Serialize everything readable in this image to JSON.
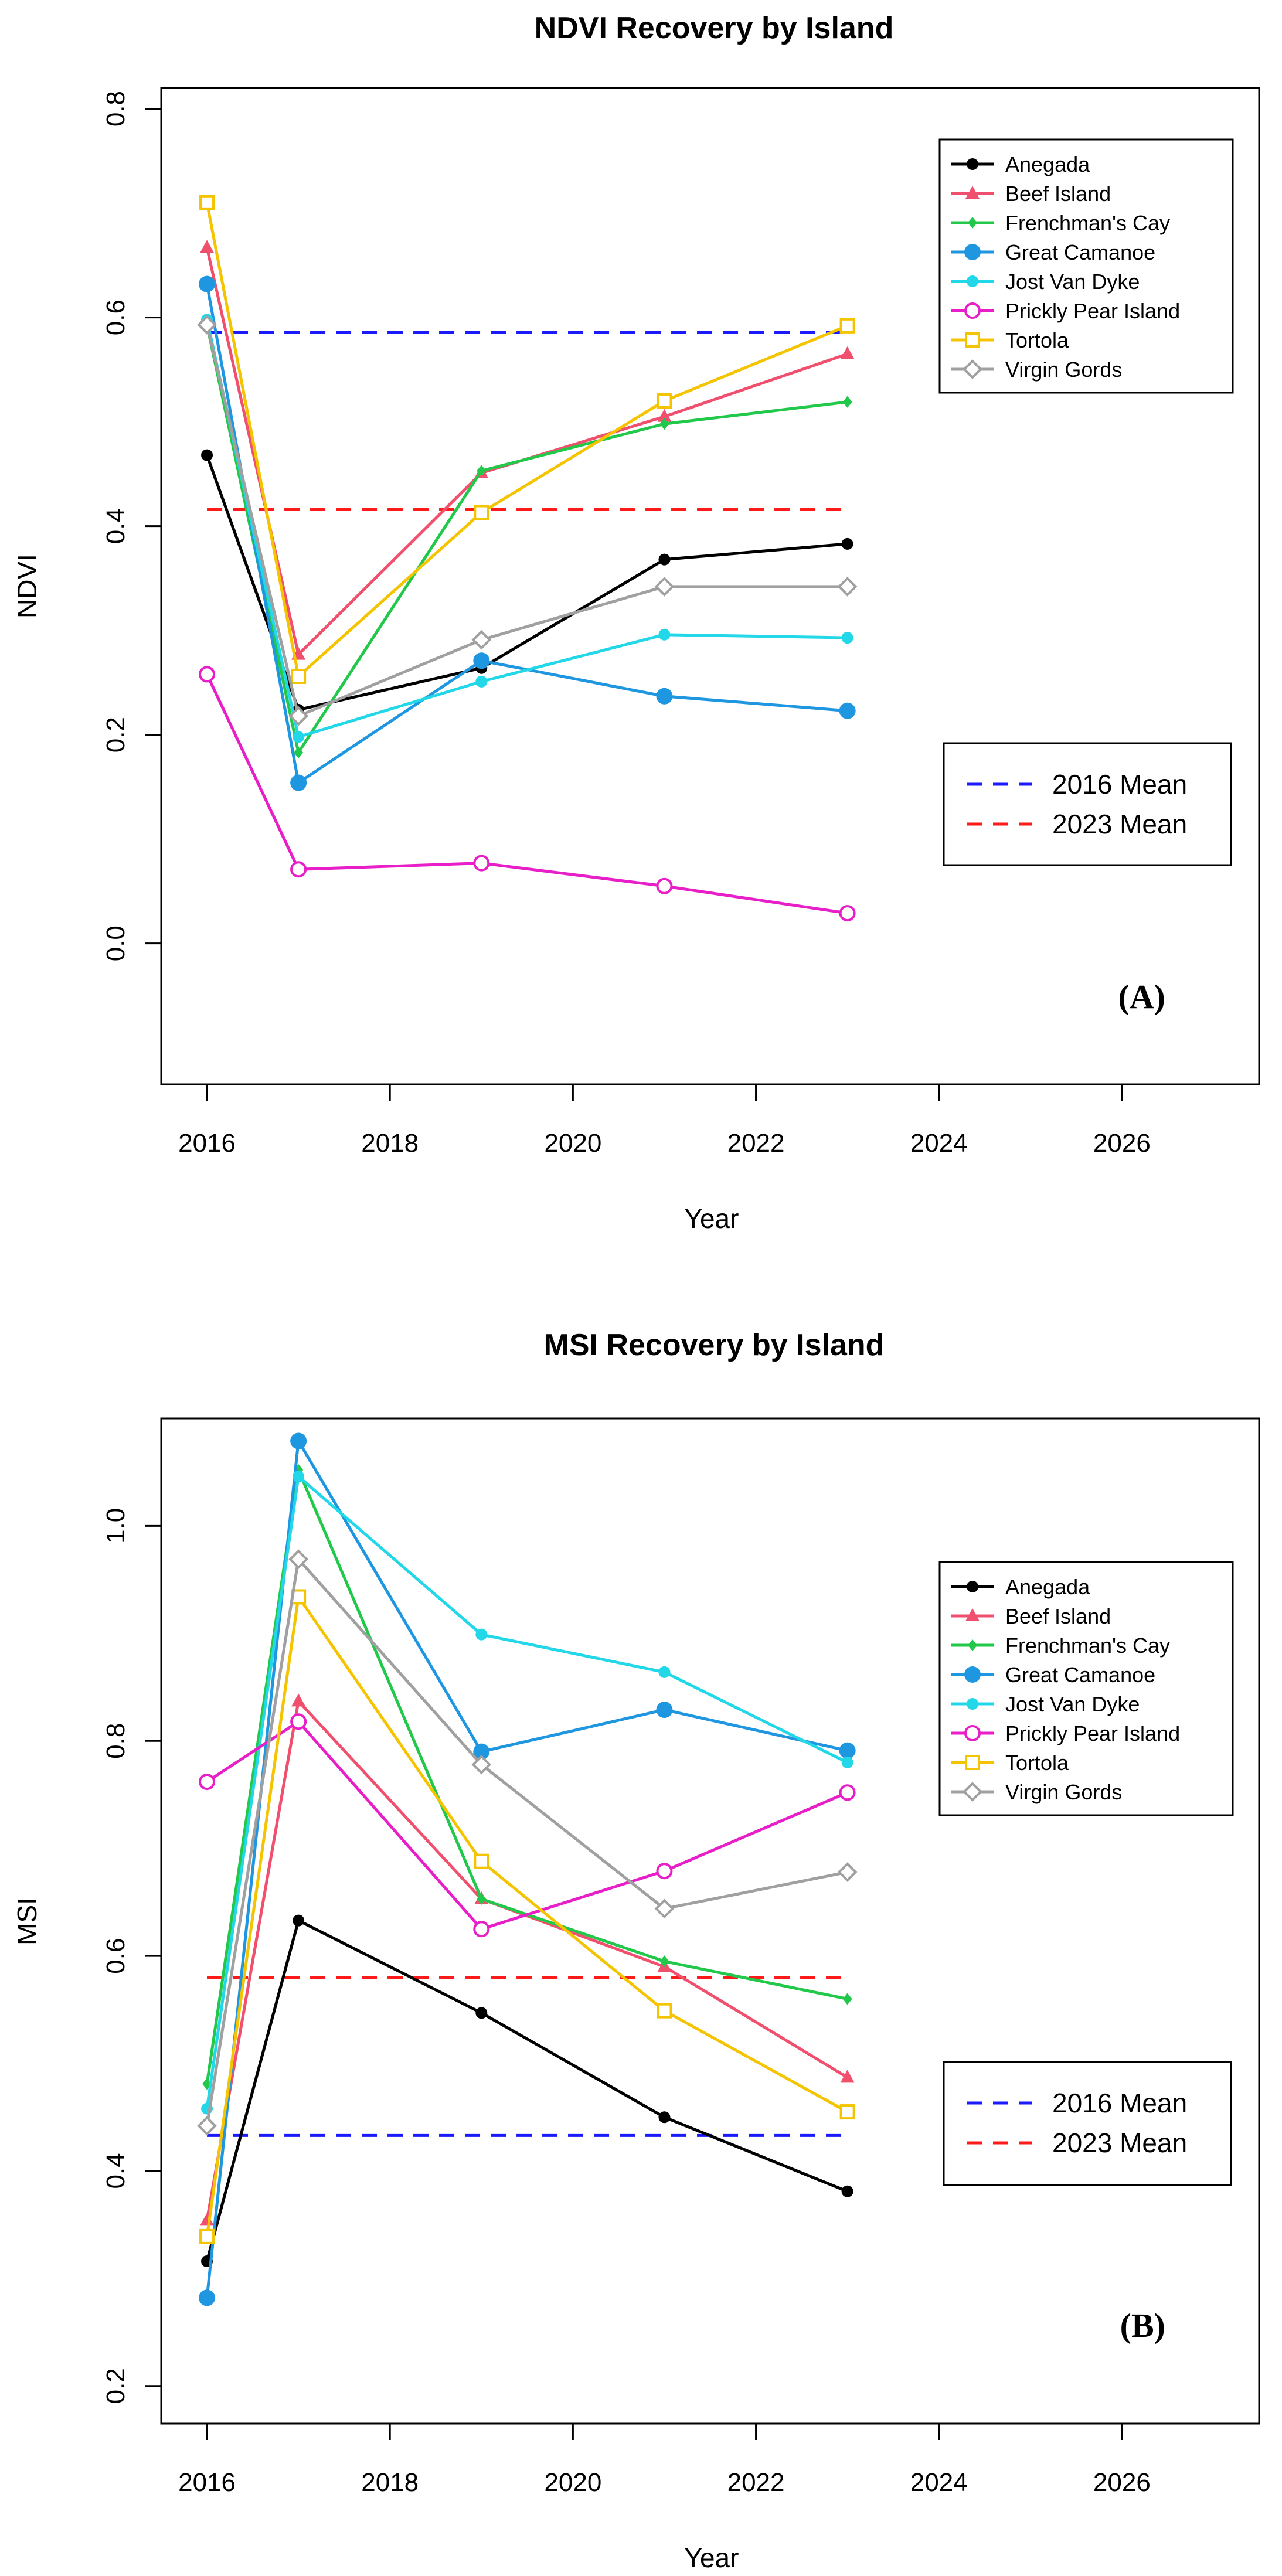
{
  "chart_data": [
    {
      "type": "line",
      "title": "NDVI Recovery by Island",
      "xlabel": "Year",
      "ylabel": "NDVI",
      "panel_label": "(A)",
      "xlim": [
        2015.5,
        2027.5
      ],
      "ylim": [
        -0.135,
        0.82
      ],
      "xticks": [
        2016,
        2018,
        2020,
        2022,
        2024,
        2026
      ],
      "yticks": [
        0.0,
        0.2,
        0.4,
        0.6,
        0.8
      ],
      "ytick_labels": [
        "0.0",
        "0.2",
        "0.4",
        "0.6",
        "0.8"
      ],
      "x": [
        2016,
        2017,
        2019,
        2021,
        2023
      ],
      "series": [
        {
          "name": "Anegada",
          "color": "#000000",
          "marker": "filled-circle",
          "values": [
            0.468,
            0.224,
            0.264,
            0.368,
            0.383
          ]
        },
        {
          "name": "Beef Island",
          "color": "#f0506e",
          "marker": "filled-triangle",
          "values": [
            0.667,
            0.277,
            0.451,
            0.505,
            0.565
          ]
        },
        {
          "name": "Frenchman's Cay",
          "color": "#22c84a",
          "marker": "filled-diamond",
          "values": [
            0.593,
            0.183,
            0.453,
            0.498,
            0.519
          ]
        },
        {
          "name": "Great Camanoe",
          "color": "#1e96e0",
          "marker": "big-filled-circle",
          "values": [
            0.632,
            0.154,
            0.271,
            0.237,
            0.223
          ]
        },
        {
          "name": "Jost Van Dyke",
          "color": "#22d8e8",
          "marker": "filled-circle",
          "values": [
            0.598,
            0.198,
            0.251,
            0.296,
            0.293
          ]
        },
        {
          "name": "Prickly Pear Island",
          "color": "#e81ec8",
          "marker": "open-circle",
          "values": [
            0.258,
            0.071,
            0.077,
            0.055,
            0.029
          ]
        },
        {
          "name": "Tortola",
          "color": "#f5c400",
          "marker": "open-square",
          "values": [
            0.71,
            0.256,
            0.413,
            0.52,
            0.592
          ]
        },
        {
          "name": "Virgin Gords",
          "color": "#a0a0a0",
          "marker": "open-diamond",
          "values": [
            0.593,
            0.218,
            0.291,
            0.342,
            0.342
          ]
        }
      ],
      "mean_lines": [
        {
          "name": "2016 Mean",
          "color": "#1a1aff",
          "value": 0.586
        },
        {
          "name": "2023 Mean",
          "color": "#ff1a1a",
          "value": 0.416
        }
      ]
    },
    {
      "type": "line",
      "title": "MSI Recovery by Island",
      "xlabel": "Year",
      "ylabel": "MSI",
      "panel_label": "(B)",
      "xlim": [
        2015.5,
        2027.5
      ],
      "ylim": [
        0.165,
        1.1
      ],
      "xticks": [
        2016,
        2018,
        2020,
        2022,
        2024,
        2026
      ],
      "yticks": [
        0.2,
        0.4,
        0.6,
        0.8,
        1.0
      ],
      "ytick_labels": [
        "0.2",
        "0.4",
        "0.6",
        "0.8",
        "1.0"
      ],
      "x": [
        2016,
        2017,
        2019,
        2021,
        2023
      ],
      "series": [
        {
          "name": "Anegada",
          "color": "#000000",
          "marker": "filled-circle",
          "values": [
            0.316,
            0.633,
            0.547,
            0.45,
            0.381
          ]
        },
        {
          "name": "Beef Island",
          "color": "#f0506e",
          "marker": "filled-triangle",
          "values": [
            0.354,
            0.837,
            0.653,
            0.59,
            0.487
          ]
        },
        {
          "name": "Frenchman's Cay",
          "color": "#22c84a",
          "marker": "filled-diamond",
          "values": [
            0.481,
            1.052,
            0.653,
            0.595,
            0.56
          ]
        },
        {
          "name": "Great Camanoe",
          "color": "#1e96e0",
          "marker": "big-filled-circle",
          "values": [
            0.282,
            1.079,
            0.79,
            0.829,
            0.791
          ]
        },
        {
          "name": "Jost Van Dyke",
          "color": "#22d8e8",
          "marker": "filled-circle",
          "values": [
            0.458,
            1.046,
            0.899,
            0.864,
            0.78
          ]
        },
        {
          "name": "Prickly Pear Island",
          "color": "#e81ec8",
          "marker": "open-circle",
          "values": [
            0.762,
            0.818,
            0.625,
            0.679,
            0.752
          ]
        },
        {
          "name": "Tortola",
          "color": "#f5c400",
          "marker": "open-square",
          "values": [
            0.339,
            0.934,
            0.688,
            0.549,
            0.455
          ]
        },
        {
          "name": "Virgin Gords",
          "color": "#a0a0a0",
          "marker": "open-diamond",
          "values": [
            0.442,
            0.969,
            0.778,
            0.644,
            0.678
          ]
        }
      ],
      "mean_lines": [
        {
          "name": "2016 Mean",
          "color": "#1a1aff",
          "value": 0.433
        },
        {
          "name": "2023 Mean",
          "color": "#ff1a1a",
          "value": 0.58
        }
      ]
    }
  ]
}
